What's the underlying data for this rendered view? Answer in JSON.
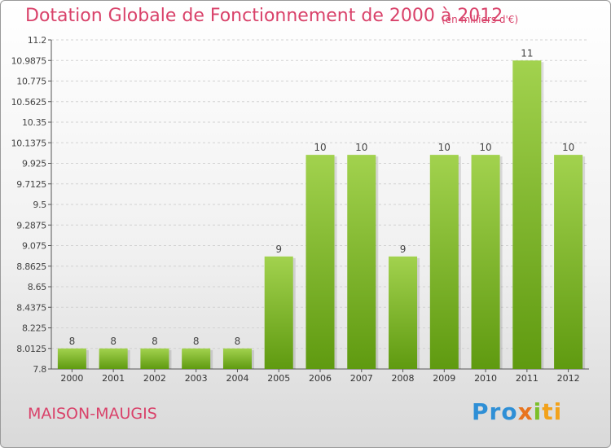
{
  "header": {
    "title": "Dotation Globale de Fonctionnement de 2000 à 2012",
    "unit": "(en milliers d'€)"
  },
  "footer": {
    "place": "MAISON-MAUGIS",
    "logo": [
      "Pro",
      "x",
      "i",
      "ti"
    ]
  },
  "colors": {
    "bar_top": "#a2d24e",
    "bar_bottom": "#5f9a10",
    "title": "#d9426a"
  },
  "chart_data": {
    "type": "bar",
    "title": "Dotation Globale de Fonctionnement de 2000 à 2012",
    "subtitle": "(en milliers d'€)",
    "xlabel": "",
    "ylabel": "",
    "categories": [
      "2000",
      "2001",
      "2002",
      "2003",
      "2004",
      "2005",
      "2006",
      "2007",
      "2008",
      "2009",
      "2010",
      "2011",
      "2012"
    ],
    "values": [
      8,
      8,
      8,
      8,
      8,
      9,
      10,
      10,
      9,
      10,
      10,
      11,
      10
    ],
    "data_labels": [
      "8",
      "8",
      "8",
      "8",
      "8",
      "9",
      "10",
      "10",
      "9",
      "10",
      "10",
      "11",
      "10"
    ],
    "bar_heights": [
      8.0125,
      8.0125,
      8.0125,
      8.0125,
      8.0125,
      8.9625,
      10.0125,
      10.0125,
      8.9625,
      10.0125,
      10.0125,
      10.9875,
      10.0125
    ],
    "ylim": [
      7.8,
      11.2
    ],
    "yticks": [
      "7.8",
      "8.0125",
      "8.225",
      "8.4375",
      "8.65",
      "8.8625",
      "9.075",
      "9.2875",
      "9.5",
      "9.7125",
      "9.925",
      "10.1375",
      "10.35",
      "10.5625",
      "10.775",
      "10.9875",
      "11.2"
    ],
    "grid": true
  }
}
